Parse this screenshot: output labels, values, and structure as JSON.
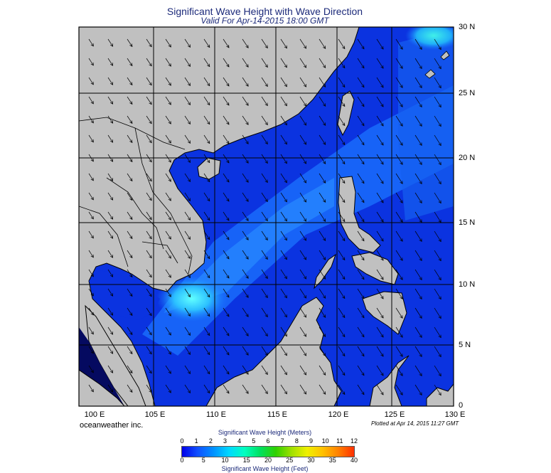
{
  "title": "Significant Wave Height with Wave Direction",
  "subtitle": "Valid For Apr-14-2015 18:00 GMT",
  "lat_labels": [
    "30 N",
    "25 N",
    "20 N",
    "15 N",
    "10 N",
    "5 N",
    "0"
  ],
  "lon_labels": [
    "100 E",
    "105 E",
    "110 E",
    "115 E",
    "120 E",
    "125 E",
    "130 E"
  ],
  "credit": "oceanweather inc.",
  "plotted": "Plotted at Apr 14, 2015 11:27 GMT",
  "colorbar": {
    "meters_title": "Significant Wave Height (Meters)",
    "feet_title": "Significant Wave Height (Feet)",
    "meters_ticks": [
      "0",
      "1",
      "2",
      "3",
      "4",
      "5",
      "6",
      "7",
      "8",
      "9",
      "10",
      "11",
      "12"
    ],
    "feet_ticks": [
      "0",
      "5",
      "10",
      "15",
      "20",
      "25",
      "30",
      "35",
      "40"
    ],
    "colors": [
      "#0000e8",
      "#1050ff",
      "#0090ff",
      "#00d8ff",
      "#00ffc0",
      "#00e060",
      "#30d000",
      "#a0e000",
      "#f0f000",
      "#ffc000",
      "#ff8000",
      "#ff3000"
    ]
  },
  "colors": {
    "land": "#c0c0c0",
    "deep_blue": "#0a2ad8",
    "mid_blue": "#1060f0",
    "light_blue": "#2e9cff",
    "cyan": "#30f0f0",
    "title": "#1c2a7a"
  }
}
